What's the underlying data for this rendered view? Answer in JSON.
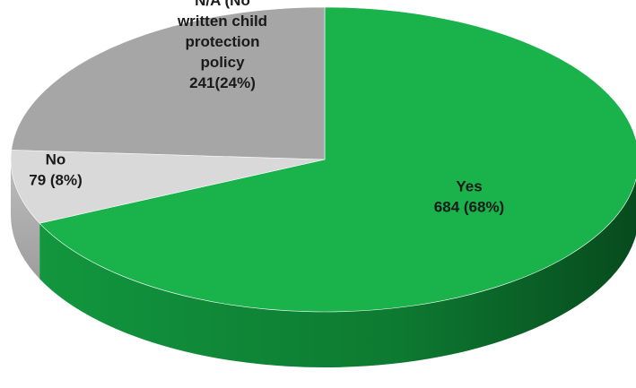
{
  "chart_data": {
    "type": "pie",
    "style": "3d",
    "slices": [
      {
        "label": "Yes",
        "value": 684,
        "percent": 68,
        "display": [
          "Yes",
          "684 (68%)"
        ],
        "color": "#19b24b",
        "side_color": "#0e7a31"
      },
      {
        "label": "No",
        "value": 79,
        "percent": 8,
        "display": [
          "No",
          "79 (8%)"
        ],
        "color": "#d9d9d9",
        "side_color": "#b3b3b3"
      },
      {
        "label": "N/A (No written child protection policy)",
        "value": 241,
        "percent": 24,
        "display": [
          "N/A (No",
          "written child",
          "protection",
          "policy",
          "241(24%)"
        ],
        "color": "#a6a6a6",
        "side_color": "#8a8a8a"
      }
    ]
  }
}
